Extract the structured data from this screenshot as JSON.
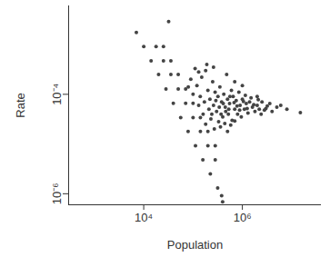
{
  "chart_data": {
    "type": "scatter",
    "x_label": "Population",
    "y_label": "Rate",
    "log": true,
    "color": "#444444",
    "marker": "circle",
    "xlim": [
      300,
      40000000
    ],
    "ylim": [
      6e-07,
      0.006
    ],
    "xticks": [
      {
        "value": 10000,
        "label": "10⁴"
      },
      {
        "value": 1000000,
        "label": "10⁶"
      }
    ],
    "yticks": [
      {
        "value": 1e-06,
        "label": "10⁻⁶"
      },
      {
        "value": 0.0001,
        "label": "10⁻⁴"
      }
    ],
    "x": [
      7080,
      10000,
      14100,
      20000,
      28200,
      39800,
      56200,
      79400,
      112000,
      158000,
      224000,
      316000,
      380000,
      17800,
      25100,
      35500,
      50100,
      70800,
      100000,
      141000,
      200000,
      282000,
      25100,
      35500,
      50100,
      70800,
      100000,
      141000,
      200000,
      282000,
      120000,
      150000,
      180000,
      200000,
      220000,
      250000,
      260000,
      280000,
      300000,
      320000,
      350000,
      380000,
      400000,
      420000,
      450000,
      480000,
      500000,
      520000,
      550000,
      600000,
      620000,
      650000,
      700000,
      750000,
      800000,
      850000,
      900000,
      950000,
      1000000,
      1100000,
      1200000,
      1300000,
      1400000,
      1600000,
      1800000,
      2000000,
      2200000,
      2500000,
      2800000,
      3200000,
      3600000,
      4000000,
      5000000,
      6000000,
      8000000,
      15000000,
      160000,
      180000,
      230000,
      270000,
      330000,
      360000,
      440000,
      500000,
      580000,
      700000,
      130000,
      140000,
      170000,
      210000,
      240000,
      290000,
      340000,
      370000,
      410000,
      460000,
      530000,
      560000,
      680000,
      780000,
      880000,
      1050000,
      1150000,
      1250000,
      1500000,
      1700000,
      2100000,
      2400000,
      3000000,
      110000,
      190000,
      260000,
      130000,
      90000,
      100000,
      80000,
      2000000,
      1000000,
      700000,
      32000,
      398000
    ],
    "values": [
      0.00176,
      0.00091,
      0.00047,
      0.00025,
      0.000128,
      6.6e-05,
      3.4e-05,
      1.8e-05,
      9.2e-06,
      4.8e-06,
      2.5e-06,
      1.3e-06,
      9.1e-07,
      0.00091,
      0.00047,
      0.00025,
      0.000128,
      6.6e-05,
      3.4e-05,
      1.8e-05,
      9.2e-06,
      4.8e-06,
      0.00091,
      0.00047,
      0.00025,
      0.000128,
      6.6e-05,
      3.4e-05,
      1.8e-05,
      9.2e-06,
      0.00015,
      0.00022,
      0.0003,
      0.00012,
      8e-05,
      0.00018,
      6e-05,
      0.00011,
      4.5e-05,
      9e-05,
      0.00014,
      7e-05,
      3.5e-05,
      0.0001,
      5.5e-05,
      0.00025,
      8e-05,
      4e-05,
      6.5e-05,
      0.00012,
      3e-05,
      9e-05,
      5e-05,
      7.5e-05,
      4e-05,
      0.00011,
      6e-05,
      3.5e-05,
      8e-05,
      5e-05,
      6.5e-05,
      4.2e-05,
      7e-05,
      5.5e-05,
      4.5e-05,
      6e-05,
      5e-05,
      7e-05,
      4.8e-05,
      5.8e-05,
      6.5e-05,
      4.5e-05,
      5.5e-05,
      6e-05,
      5e-05,
      4.3e-05,
      4e-05,
      2.5e-05,
      3.2e-05,
      2e-05,
      2.8e-05,
      2.2e-05,
      2.6e-05,
      1.8e-05,
      2.4e-05,
      2.9e-05,
      6e-05,
      9e-05,
      7e-05,
      5e-05,
      4e-05,
      7.5e-05,
      5.5e-05,
      4e-05,
      6.5e-05,
      4.5e-05,
      5e-05,
      9e-05,
      6.8e-05,
      5.8e-05,
      4.8e-05,
      7.2e-05,
      9.5e-05,
      5.2e-05,
      8.5e-05,
      6.2e-05,
      7.8e-05,
      4e-05,
      5.2e-05,
      0.00033,
      0.0004,
      0.00035,
      0.00028,
      0.0002,
      0.0001,
      0.00014,
      9e-05,
      0.00015,
      0.00018,
      0.0029,
      6.9e-07
    ]
  }
}
